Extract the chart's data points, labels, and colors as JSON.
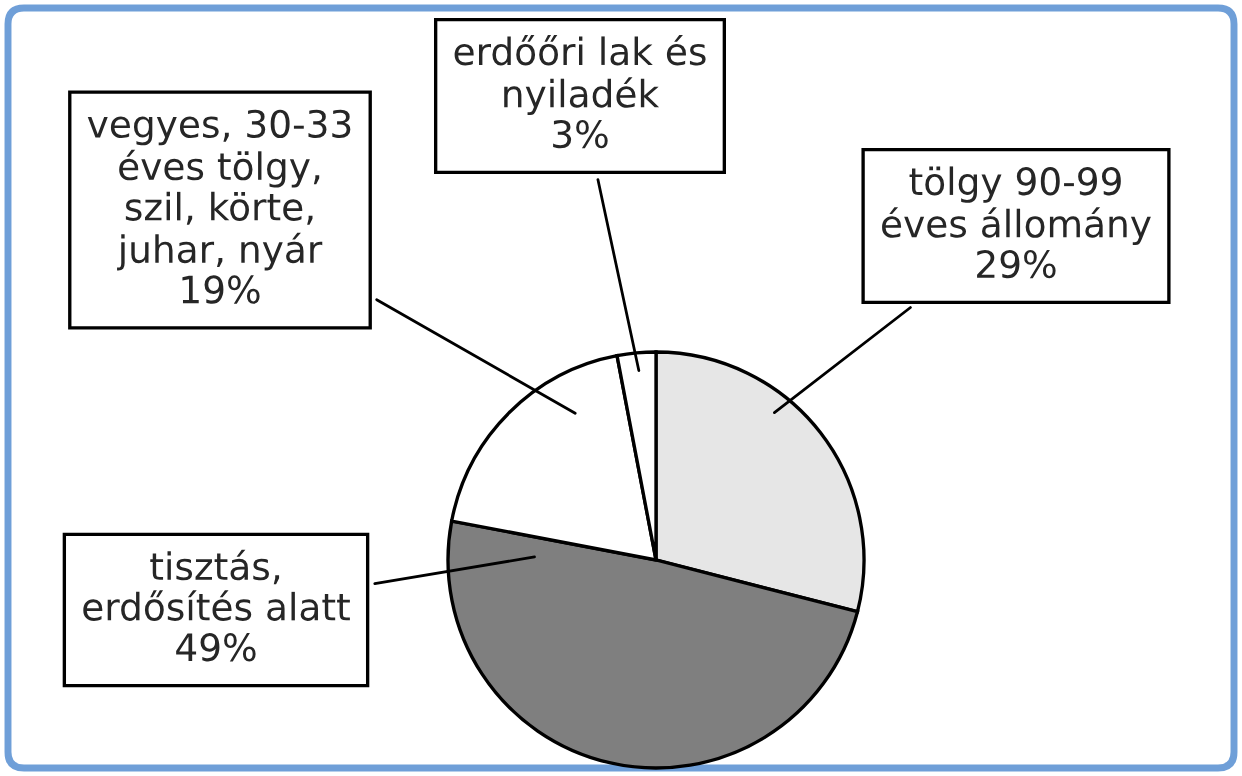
{
  "chart_data": {
    "type": "pie",
    "categories": [
      "tölgy 90-99\néves állomány",
      "tisztás,\nerdősítés alatt",
      "vegyes, 30-33\néves tölgy,\nszil, körte,\njuhar, nyár",
      "erdőőri lak és\nnyiladék"
    ],
    "values": [
      29,
      49,
      19,
      3
    ],
    "value_labels": [
      "29%",
      "49%",
      "19%",
      "3%"
    ],
    "colors": [
      "#e6e6e6",
      "#7f7f7f",
      "#ffffff",
      "#ffffff"
    ],
    "legend": false
  }
}
